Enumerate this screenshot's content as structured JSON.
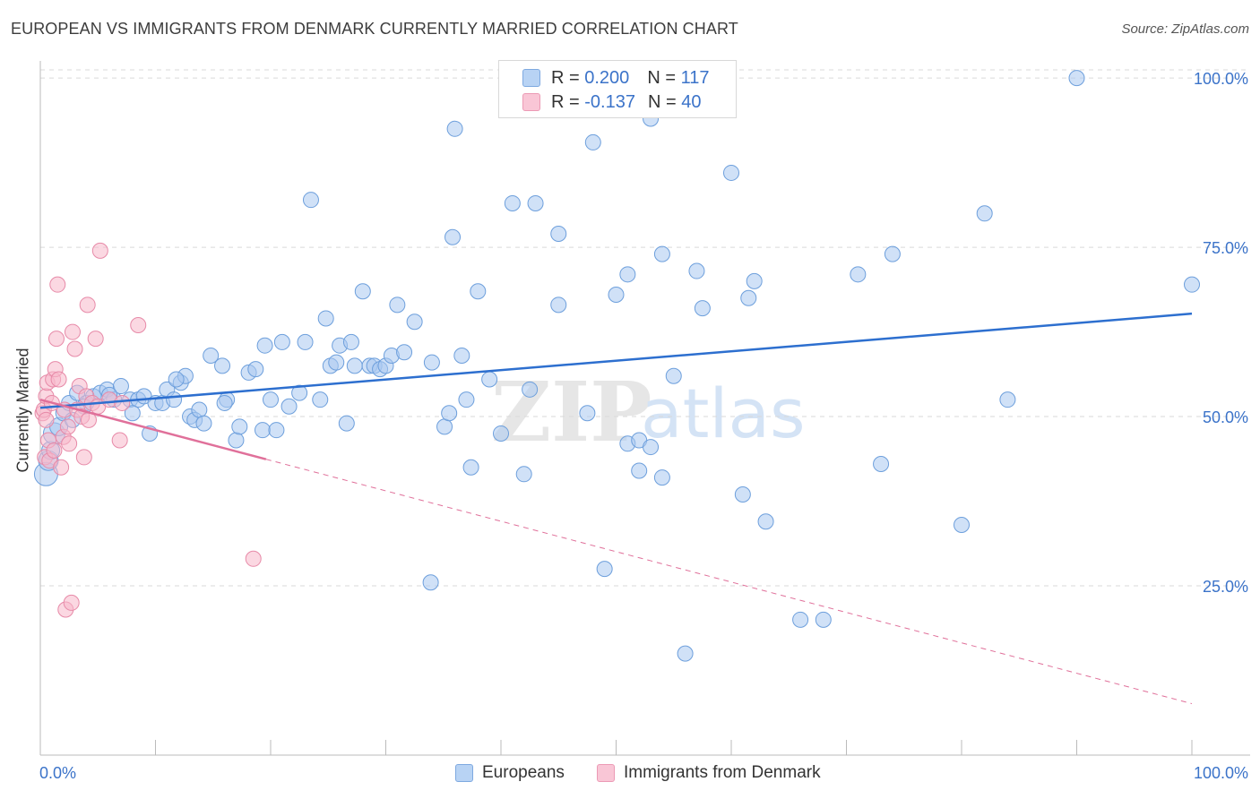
{
  "title": "EUROPEAN VS IMMIGRANTS FROM DENMARK CURRENTLY MARRIED CORRELATION CHART",
  "source": "Source: ZipAtlas.com",
  "watermark": {
    "zip": "ZIP",
    "atlas": "atlas"
  },
  "colors": {
    "blue_fill": "#a9c8f0",
    "blue_stroke": "#6d9fdc",
    "blue_line": "#2d6fcf",
    "pink_fill": "#f7b8cb",
    "pink_stroke": "#e78aa8",
    "pink_line": "#e0709a",
    "axis_label": "#3b73c9",
    "grid": "#d9d9d9"
  },
  "legend": [
    {
      "r_label": "R =",
      "r_value": "0.200",
      "n_label": "N =",
      "n_value": "117"
    },
    {
      "r_label": "R =",
      "r_value": "-0.137",
      "n_label": "N =",
      "n_value": "40"
    }
  ],
  "bottom_legend": [
    "Europeans",
    "Immigrants from Denmark"
  ],
  "chart_data": {
    "type": "scatter",
    "title": "EUROPEAN VS IMMIGRANTS FROM DENMARK CURRENTLY MARRIED CORRELATION CHART",
    "xlabel": "",
    "ylabel": "Currently Married",
    "xlim": [
      0,
      100
    ],
    "ylim": [
      0,
      102
    ],
    "x_tick_labels": [
      "0.0%",
      "100.0%"
    ],
    "y_tick_labels": [
      "25.0%",
      "50.0%",
      "75.0%",
      "100.0%"
    ],
    "y_ticks": [
      25,
      50,
      75,
      100
    ],
    "grid": true,
    "legend_position": "top-center",
    "series": [
      {
        "name": "Europeans",
        "r": 0.2,
        "n": 117,
        "trend": {
          "x": [
            0,
            100
          ],
          "y": [
            51.3,
            65.2
          ],
          "dashed_from": null
        },
        "points": [
          [
            0.5,
            41.5
          ],
          [
            0.7,
            43.5
          ],
          [
            0.9,
            45.0
          ],
          [
            1.2,
            47.5
          ],
          [
            1.6,
            48.5
          ],
          [
            2.0,
            50.5
          ],
          [
            2.5,
            52.0
          ],
          [
            3.2,
            53.5
          ],
          [
            4.0,
            52.0
          ],
          [
            4.6,
            53.0
          ],
          [
            5.2,
            53.5
          ],
          [
            5.8,
            54.0
          ],
          [
            6.4,
            52.5
          ],
          [
            7.0,
            54.5
          ],
          [
            7.8,
            52.5
          ],
          [
            8.5,
            52.5
          ],
          [
            9.0,
            53.0
          ],
          [
            9.5,
            47.5
          ],
          [
            10.0,
            52.0
          ],
          [
            10.6,
            52.0
          ],
          [
            11.0,
            54.0
          ],
          [
            11.6,
            52.5
          ],
          [
            12.2,
            55.0
          ],
          [
            12.6,
            56.0
          ],
          [
            13.0,
            50.0
          ],
          [
            13.4,
            49.5
          ],
          [
            13.8,
            51.0
          ],
          [
            14.2,
            49.0
          ],
          [
            14.8,
            59.0
          ],
          [
            15.8,
            57.5
          ],
          [
            16.2,
            52.5
          ],
          [
            17.0,
            46.5
          ],
          [
            17.3,
            48.5
          ],
          [
            18.1,
            56.5
          ],
          [
            18.7,
            57.0
          ],
          [
            19.3,
            48.0
          ],
          [
            19.5,
            60.5
          ],
          [
            20.0,
            52.5
          ],
          [
            20.5,
            48.0
          ],
          [
            21.0,
            61.0
          ],
          [
            21.6,
            51.5
          ],
          [
            22.5,
            53.5
          ],
          [
            23.0,
            61.0
          ],
          [
            23.5,
            82.0
          ],
          [
            24.3,
            52.5
          ],
          [
            24.8,
            64.5
          ],
          [
            25.2,
            57.5
          ],
          [
            25.7,
            58.0
          ],
          [
            26.0,
            60.5
          ],
          [
            26.6,
            49.0
          ],
          [
            27.0,
            61.0
          ],
          [
            27.3,
            57.5
          ],
          [
            28.0,
            68.5
          ],
          [
            28.6,
            57.5
          ],
          [
            29.0,
            57.5
          ],
          [
            29.5,
            57.0
          ],
          [
            30.0,
            57.5
          ],
          [
            30.5,
            59.0
          ],
          [
            31.0,
            66.5
          ],
          [
            31.6,
            59.5
          ],
          [
            32.5,
            64.0
          ],
          [
            33.9,
            25.5
          ],
          [
            34.0,
            58.0
          ],
          [
            35.1,
            48.5
          ],
          [
            35.5,
            50.5
          ],
          [
            35.8,
            76.5
          ],
          [
            36.0,
            92.5
          ],
          [
            36.6,
            59.0
          ],
          [
            37.0,
            52.5
          ],
          [
            37.4,
            42.5
          ],
          [
            38.0,
            68.5
          ],
          [
            39.0,
            55.5
          ],
          [
            40.0,
            47.5
          ],
          [
            41.0,
            81.5
          ],
          [
            42.0,
            41.5
          ],
          [
            42.5,
            54.0
          ],
          [
            43.0,
            81.5
          ],
          [
            45.0,
            77.0
          ],
          [
            45.0,
            66.5
          ],
          [
            47.5,
            50.5
          ],
          [
            48.0,
            90.5
          ],
          [
            49.0,
            27.5
          ],
          [
            50.0,
            100.0
          ],
          [
            50.0,
            68.0
          ],
          [
            51.0,
            71.0
          ],
          [
            51.0,
            46.0
          ],
          [
            52.0,
            42.0
          ],
          [
            52.0,
            46.5
          ],
          [
            53.0,
            94.0
          ],
          [
            53.0,
            45.5
          ],
          [
            54.0,
            41.0
          ],
          [
            54.0,
            74.0
          ],
          [
            55.0,
            56.0
          ],
          [
            56.0,
            15.0
          ],
          [
            57.0,
            71.5
          ],
          [
            57.5,
            66.0
          ],
          [
            60.0,
            86.0
          ],
          [
            61.0,
            38.5
          ],
          [
            61.5,
            67.5
          ],
          [
            62.0,
            70.0
          ],
          [
            63.0,
            34.5
          ],
          [
            66.0,
            20.0
          ],
          [
            68.0,
            20.0
          ],
          [
            71.0,
            71.0
          ],
          [
            73.0,
            43.0
          ],
          [
            74.0,
            74.0
          ],
          [
            80.0,
            34.0
          ],
          [
            82.0,
            80.0
          ],
          [
            84.0,
            52.5
          ],
          [
            90.0,
            100.0
          ],
          [
            100.0,
            69.5
          ],
          [
            16.0,
            52.0
          ],
          [
            8.0,
            50.5
          ],
          [
            11.8,
            55.5
          ],
          [
            6.0,
            53.2
          ],
          [
            3.8,
            51.5
          ],
          [
            2.8,
            49.5
          ]
        ]
      },
      {
        "name": "Immigrants from Denmark",
        "r": -0.137,
        "n": 40,
        "trend": {
          "x": [
            0,
            100
          ],
          "y": [
            52.5,
            7.6
          ],
          "dashed_from": 19.6
        },
        "points": [
          [
            0.2,
            50.5
          ],
          [
            0.3,
            51.0
          ],
          [
            0.4,
            44.0
          ],
          [
            0.5,
            49.5
          ],
          [
            0.5,
            53.0
          ],
          [
            0.6,
            55.0
          ],
          [
            0.7,
            46.5
          ],
          [
            0.8,
            43.5
          ],
          [
            1.0,
            52.0
          ],
          [
            1.1,
            55.5
          ],
          [
            1.2,
            45.0
          ],
          [
            1.3,
            57.0
          ],
          [
            1.4,
            61.5
          ],
          [
            1.5,
            69.5
          ],
          [
            1.6,
            55.5
          ],
          [
            1.8,
            42.5
          ],
          [
            2.0,
            47.0
          ],
          [
            2.1,
            51.0
          ],
          [
            2.2,
            21.5
          ],
          [
            2.4,
            48.5
          ],
          [
            2.5,
            46.0
          ],
          [
            2.7,
            22.5
          ],
          [
            2.8,
            62.5
          ],
          [
            3.0,
            60.0
          ],
          [
            3.2,
            51.0
          ],
          [
            3.4,
            54.5
          ],
          [
            3.6,
            50.0
          ],
          [
            3.8,
            44.0
          ],
          [
            4.0,
            53.0
          ],
          [
            4.1,
            66.5
          ],
          [
            4.2,
            49.5
          ],
          [
            4.5,
            52.0
          ],
          [
            4.8,
            61.5
          ],
          [
            5.0,
            51.5
          ],
          [
            5.2,
            74.5
          ],
          [
            6.0,
            52.5
          ],
          [
            6.9,
            46.5
          ],
          [
            7.1,
            52.0
          ],
          [
            8.5,
            63.5
          ],
          [
            18.5,
            29.0
          ]
        ]
      }
    ]
  }
}
